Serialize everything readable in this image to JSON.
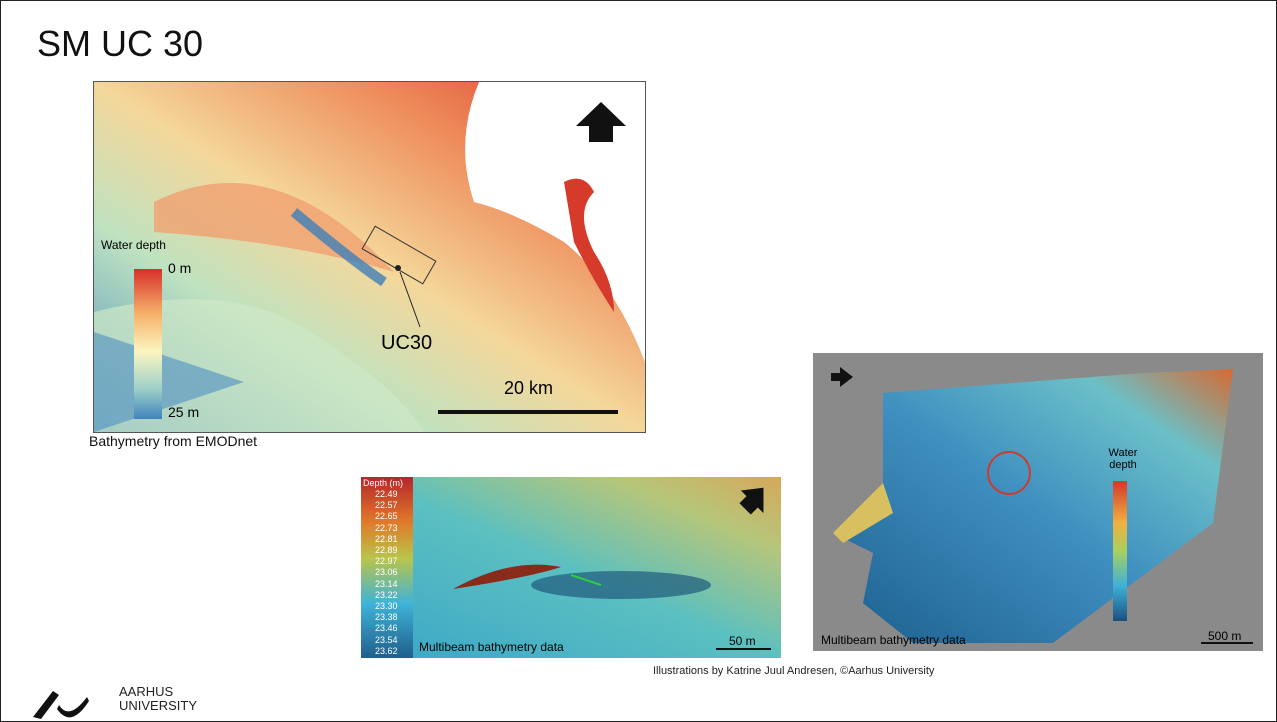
{
  "header": {
    "title": "SM UC 30"
  },
  "map1": {
    "legend_title": "Water depth",
    "legend_top": "0 m",
    "legend_bottom": "25 m",
    "site_label": "UC30",
    "scale": "20 km",
    "caption": "Bathymetry from EMODnet"
  },
  "map2": {
    "legend_title": "Depth (m)",
    "legend_values": [
      "22.49",
      "22.57",
      "22.65",
      "22.73",
      "22.81",
      "22.89",
      "22.97",
      "23.06",
      "23.14",
      "23.22",
      "23.30",
      "23.38",
      "23.46",
      "23.54",
      "23.62"
    ],
    "caption": "Multibeam bathymetry data",
    "scale": "50 m"
  },
  "map3": {
    "legend_title": "Water depth",
    "caption": "Multibeam bathymetry data",
    "scale": "500 m"
  },
  "credit": "Illustrations by Katrine Juul Andresen, ©Aarhus University",
  "logo": {
    "line1": "AARHUS",
    "line2": "UNIVERSITY"
  }
}
